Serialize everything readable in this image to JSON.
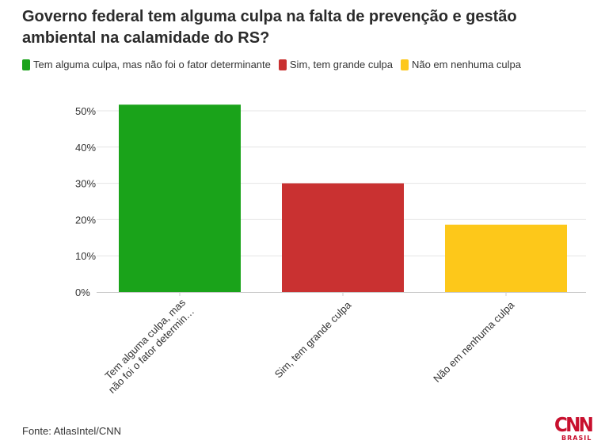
{
  "title": "Governo federal tem alguma culpa na falta de prevenção e gestão ambiental na calamidade do RS?",
  "source": "Fonte: AtlasIntel/CNN",
  "logo": {
    "main": "CNN",
    "sub": "BRASIL"
  },
  "colors": {
    "green": "#1aa31a",
    "red": "#c93131",
    "yellow": "#fdc81a",
    "grid": "#e6e6e6",
    "axis": "#cccccc",
    "text": "#333333"
  },
  "chart_data": {
    "type": "bar",
    "categories": [
      "Tem alguma culpa, mas não foi o fator determinante",
      "Sim, tem grande culpa",
      "Não em nenhuma culpa"
    ],
    "category_tick_labels": [
      [
        "Tem alguma culpa, mas",
        "não foi o fator determin…"
      ],
      [
        "Sim, tem grande culpa"
      ],
      [
        "Não em nenhuma culpa"
      ]
    ],
    "values": [
      51.7,
      30.0,
      18.6
    ],
    "colors": [
      "#1aa31a",
      "#c93131",
      "#fdc81a"
    ],
    "legend": [
      "Tem alguma culpa, mas não foi o fator determinante",
      "Sim, tem grande culpa",
      "Não em nenhuma culpa"
    ],
    "legend_position": "top-left",
    "ylim": [
      0,
      50
    ],
    "yticks": [
      0,
      10,
      20,
      30,
      40,
      50
    ],
    "ytick_labels": [
      "0%",
      "10%",
      "20%",
      "30%",
      "40%",
      "50%"
    ],
    "grid": true,
    "xlabel": "",
    "ylabel": ""
  }
}
